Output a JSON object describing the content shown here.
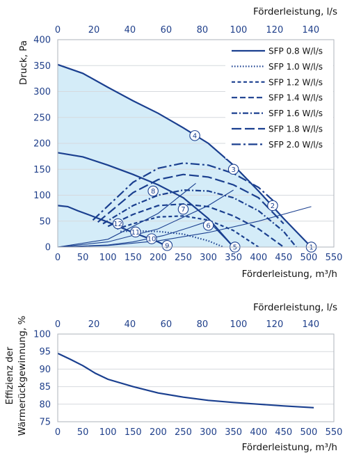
{
  "chart_data": [
    {
      "type": "line",
      "top_axis_title": "Förderleistung, l/s",
      "top_axis_ticks": [
        "0",
        "20",
        "40",
        "60",
        "80",
        "100",
        "120",
        "140"
      ],
      "xlabel": "Förderleistung, m³/h",
      "ylabel": "Druck, Pa",
      "x_ticks": [
        "0",
        "50",
        "100",
        "150",
        "200",
        "250",
        "300",
        "350",
        "400",
        "450",
        "500",
        "550"
      ],
      "y_ticks": [
        "0",
        "50",
        "100",
        "150",
        "200",
        "250",
        "300",
        "350",
        "400"
      ],
      "xlim": [
        0,
        550
      ],
      "ylim": [
        0,
        400
      ],
      "secondary_x_unit": "l/s",
      "secondary_x_factor": 3.6,
      "fill_color": "#d4ecf8",
      "line_color": "#1a3f8f",
      "legend_position": "top-right",
      "fan_curves": [
        {
          "x": [
            0,
            50,
            100,
            150,
            200,
            250,
            300,
            350,
            400,
            450,
            505
          ],
          "y": [
            352,
            335,
            308,
            282,
            258,
            230,
            200,
            158,
            108,
            55,
            0
          ]
        },
        {
          "x": [
            0,
            50,
            100,
            150,
            200,
            250,
            300,
            350
          ],
          "y": [
            182,
            174,
            158,
            140,
            120,
            95,
            55,
            0
          ]
        },
        {
          "x": [
            0,
            20,
            40,
            60,
            100,
            150,
            200,
            220
          ],
          "y": [
            80,
            78,
            70,
            63,
            48,
            28,
            10,
            0
          ]
        }
      ],
      "system_curves": [
        {
          "x": [
            0,
            100,
            200,
            300,
            400,
            505
          ],
          "y": [
            0,
            3,
            12,
            28,
            50,
            78
          ]
        },
        {
          "x": [
            0,
            100,
            200,
            300,
            350
          ],
          "y": [
            0,
            10,
            35,
            80,
            110
          ]
        },
        {
          "x": [
            0,
            100,
            200,
            275
          ],
          "y": [
            0,
            15,
            65,
            123
          ]
        },
        {
          "x": [
            0,
            100,
            150,
            210,
            260,
            300,
            350
          ],
          "y": [
            0,
            4,
            10,
            22,
            37,
            50,
            0
          ]
        }
      ],
      "series": [
        {
          "name": "SFP 0.8 W/l/s",
          "dash": "solid",
          "x": [],
          "y": []
        },
        {
          "name": "SFP 1.0 W/l/s",
          "dash": "dotted",
          "x": [
            125,
            150,
            200,
            250,
            300,
            330
          ],
          "y": [
            30,
            31,
            30,
            25,
            12,
            0
          ]
        },
        {
          "name": "SFP 1.2 W/l/s",
          "dash": "short-dash",
          "x": [
            118,
            150,
            200,
            250,
            300,
            350,
            400
          ],
          "y": [
            35,
            45,
            58,
            60,
            52,
            32,
            0
          ]
        },
        {
          "name": "SFP 1.4 W/l/s",
          "dash": "dash",
          "x": [
            100,
            150,
            200,
            250,
            300,
            350,
            400,
            450
          ],
          "y": [
            40,
            63,
            80,
            83,
            78,
            60,
            35,
            0
          ]
        },
        {
          "name": "SFP 1.6 W/l/s",
          "dash": "dash-dot",
          "x": [
            90,
            150,
            200,
            250,
            300,
            350,
            400,
            450,
            475
          ],
          "y": [
            45,
            80,
            100,
            110,
            108,
            95,
            70,
            30,
            0
          ]
        },
        {
          "name": "SFP 1.8 W/l/s",
          "dash": "long-dash",
          "x": [
            80,
            150,
            200,
            250,
            300,
            350,
            400,
            450
          ],
          "y": [
            48,
            105,
            130,
            140,
            135,
            120,
            95,
            45
          ]
        },
        {
          "name": "SFP 2.0 W/l/s",
          "dash": "long-dash-dot",
          "x": [
            70,
            150,
            200,
            250,
            300,
            350,
            400,
            440
          ],
          "y": [
            52,
            125,
            152,
            162,
            158,
            142,
            115,
            80
          ]
        }
      ],
      "markers": [
        {
          "label": "1",
          "x": 505,
          "y": 0
        },
        {
          "label": "2",
          "x": 428,
          "y": 80
        },
        {
          "label": "3",
          "x": 350,
          "y": 150
        },
        {
          "label": "4",
          "x": 273,
          "y": 215
        },
        {
          "label": "5",
          "x": 353,
          "y": 0
        },
        {
          "label": "6",
          "x": 300,
          "y": 42
        },
        {
          "label": "7",
          "x": 250,
          "y": 73
        },
        {
          "label": "8",
          "x": 190,
          "y": 108
        },
        {
          "label": "9",
          "x": 218,
          "y": 3
        },
        {
          "label": "10",
          "x": 187,
          "y": 16
        },
        {
          "label": "11",
          "x": 155,
          "y": 29
        },
        {
          "label": "12",
          "x": 120,
          "y": 45
        }
      ]
    },
    {
      "type": "line",
      "top_axis_title": "Förderleistung, l/s",
      "top_axis_ticks": [
        "0",
        "20",
        "40",
        "60",
        "80",
        "100",
        "120",
        "140"
      ],
      "xlabel": "Förderleistung, m³/h",
      "ylabel_lines": [
        "Effizienz der",
        "Wärmerückgewinnung, %"
      ],
      "x_ticks": [
        "0",
        "50",
        "100",
        "150",
        "200",
        "250",
        "300",
        "350",
        "400",
        "450",
        "500",
        "550"
      ],
      "y_ticks": [
        "75",
        "80",
        "85",
        "90",
        "95",
        "100"
      ],
      "xlim": [
        0,
        550
      ],
      "ylim": [
        75,
        100
      ],
      "series": [
        {
          "x": [
            0,
            25,
            50,
            75,
            100,
            150,
            200,
            250,
            300,
            350,
            400,
            450,
            510
          ],
          "y": [
            94.5,
            92.8,
            91.0,
            88.8,
            87.1,
            85.0,
            83.2,
            82.0,
            81.1,
            80.5,
            80.0,
            79.5,
            79.0
          ]
        }
      ]
    }
  ]
}
